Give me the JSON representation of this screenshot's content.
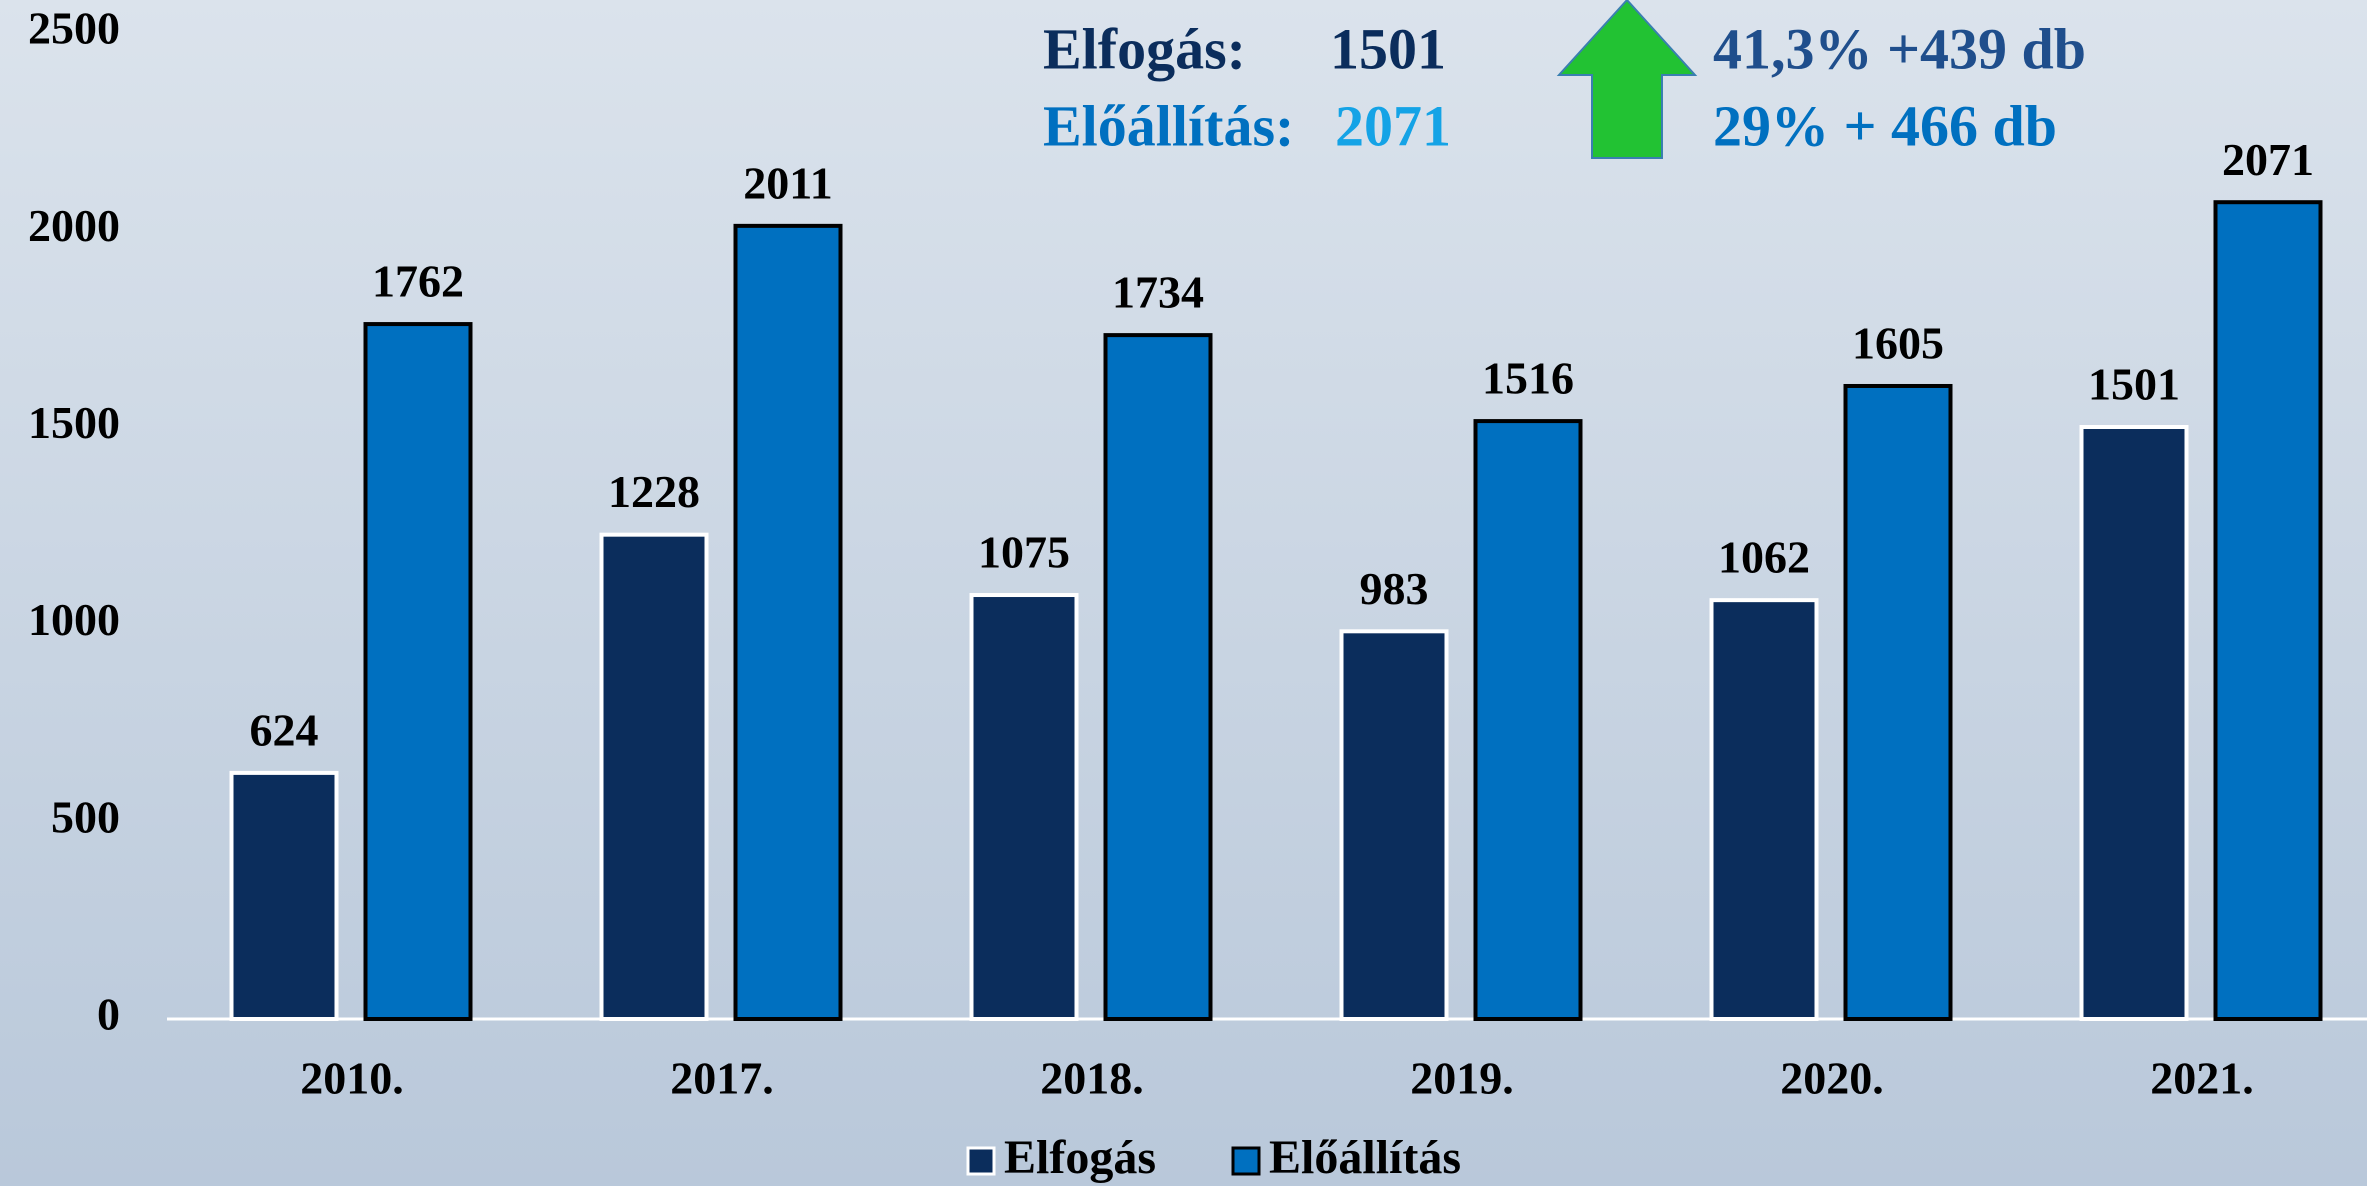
{
  "chart_data": {
    "type": "bar",
    "categories": [
      "2010.",
      "2017.",
      "2018.",
      "2019.",
      "2020.",
      "2021."
    ],
    "series": [
      {
        "name": "Elfogás",
        "color": "#0b2d5c",
        "values": [
          624,
          1228,
          1075,
          983,
          1062,
          1501
        ]
      },
      {
        "name": "Előállítás",
        "color": "#0070c0",
        "values": [
          1762,
          2011,
          1734,
          1516,
          1605,
          2071
        ]
      }
    ],
    "ylim": [
      0,
      2500
    ],
    "yticks": [
      0,
      500,
      1000,
      1500,
      2000,
      2500
    ],
    "grid": false,
    "legend": "bottom",
    "annotations": {
      "elfogas_label": "Elfogás:",
      "elfogas_value": "1501",
      "eloallitas_label": "Előállítás:",
      "eloallitas_value": "2071",
      "elfogas_change": "41,3% +439 db",
      "eloallitas_change": "29% + 466 db"
    }
  }
}
